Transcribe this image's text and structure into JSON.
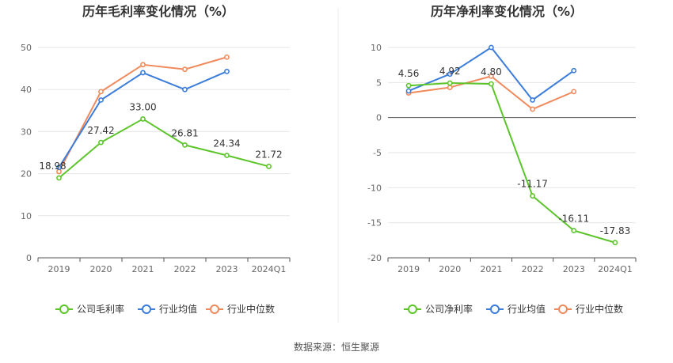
{
  "footer": "数据来源：恒生聚源",
  "legend_labels": [
    "公司毛利率",
    "行业均值",
    "行业中位数",
    "公司净利率"
  ],
  "colors": {
    "company": "#5cc52a",
    "avg": "#3c7ddb",
    "median": "#f08a5d",
    "grid": "#e6e6e6",
    "axis": "#666666",
    "title": "#333333"
  },
  "chart_data": [
    {
      "type": "line",
      "title": "历年毛利率变化情况（%）",
      "categories": [
        "2019",
        "2020",
        "2021",
        "2022",
        "2023",
        "2024Q1"
      ],
      "ylim": [
        0,
        50
      ],
      "yticks": [
        0,
        10,
        20,
        30,
        40,
        50
      ],
      "grid": true,
      "legend_position": "bottom",
      "series": [
        {
          "name": "公司毛利率",
          "values": [
            18.98,
            27.42,
            33.0,
            26.81,
            24.34,
            21.72
          ],
          "labels": [
            "18.98",
            "27.42",
            "33.00",
            "26.81",
            "24.34",
            "21.72"
          ]
        },
        {
          "name": "行业均值",
          "values": [
            21.5,
            37.5,
            44.0,
            40.0,
            44.3,
            null
          ]
        },
        {
          "name": "行业中位数",
          "values": [
            20.5,
            39.5,
            45.9,
            44.8,
            47.7,
            null
          ]
        }
      ]
    },
    {
      "type": "line",
      "title": "历年净利率变化情况（%）",
      "categories": [
        "2019",
        "2020",
        "2021",
        "2022",
        "2023",
        "2024Q1"
      ],
      "ylim": [
        -20,
        10
      ],
      "yticks": [
        -20,
        -15,
        -10,
        -5,
        0,
        5,
        10
      ],
      "grid": true,
      "legend_position": "bottom",
      "series": [
        {
          "name": "公司净利率",
          "values": [
            4.56,
            4.92,
            4.8,
            -11.17,
            -16.11,
            -17.83
          ],
          "labels": [
            "4.56",
            "4.92",
            "4.80",
            "-11.17",
            "-16.11",
            "-17.83"
          ]
        },
        {
          "name": "行业均值",
          "values": [
            3.8,
            6.2,
            10.0,
            2.5,
            6.7,
            null
          ]
        },
        {
          "name": "行业中位数",
          "values": [
            3.5,
            4.3,
            5.9,
            1.2,
            3.7,
            null
          ]
        }
      ]
    }
  ]
}
